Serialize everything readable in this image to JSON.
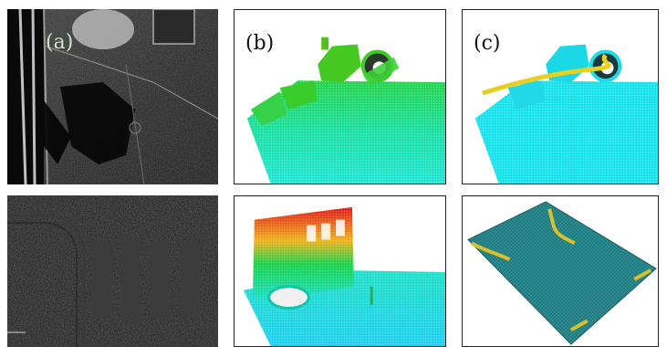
{
  "labels": {
    "a": "(a)",
    "b": "(b)",
    "c": "(c)"
  },
  "colors": {
    "background": "#ffffff",
    "panel_border": "#222222",
    "lidar_dark": "#0f0f0f",
    "lidar_light": "#d8d8d8",
    "height_low": "#1fe0f0",
    "height_mid": "#19d27a",
    "height_high": "#e01818",
    "class_ground": "#14e6ee",
    "class_curb": "#e8d020",
    "mesh_teal": "#2a8f94"
  }
}
